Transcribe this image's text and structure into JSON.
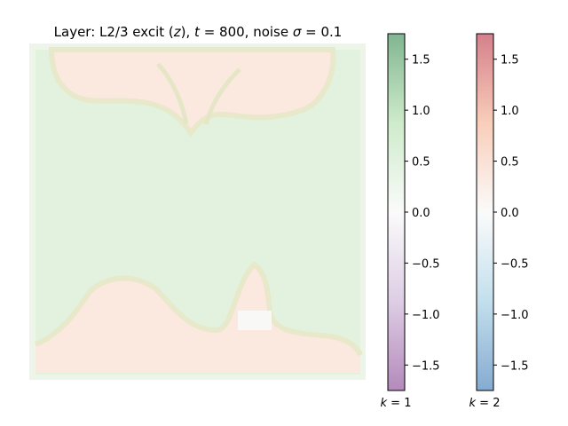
{
  "chart_data": {
    "type": "heatmap",
    "title": "Layer: L2/3 excit (z), t = 800, noise σ = 0.1",
    "title_parts": [
      {
        "text": "Layer: L2/3 excit (",
        "style": "normal"
      },
      {
        "text": "z",
        "style": "italic"
      },
      {
        "text": "), ",
        "style": "normal"
      },
      {
        "text": "t",
        "style": "italic"
      },
      {
        "text": " = 800, noise ",
        "style": "normal"
      },
      {
        "text": "σ",
        "style": "italic"
      },
      {
        "text": " = 0.1",
        "style": "normal"
      }
    ],
    "heatmap_regions": [
      {
        "name": "top-pink-region",
        "state": "k=2",
        "level": 0.35
      },
      {
        "name": "middle-green-band",
        "state": "k=1",
        "level": 0.3
      },
      {
        "name": "bottom-pink-region",
        "state": "k=2",
        "level": 0.35
      },
      {
        "name": "central-white-patch",
        "state": "none",
        "level": 0.0
      }
    ],
    "colorbars": [
      {
        "name": "colorbar-k1",
        "label_var": "k",
        "label_value": "= 1",
        "range": [
          -1.75,
          1.75
        ],
        "colors": [
          "#762a83",
          "#c2a5cf",
          "#f7f7f7",
          "#a6dba0",
          "#1b7837"
        ],
        "ticks": [
          {
            "value": 1.5,
            "label": "1.5"
          },
          {
            "value": 1.0,
            "label": "1.0"
          },
          {
            "value": 0.5,
            "label": "0.5"
          },
          {
            "value": 0.0,
            "label": "0.0"
          },
          {
            "value": -0.5,
            "label": "−0.5"
          },
          {
            "value": -1.0,
            "label": "−1.0"
          },
          {
            "value": -1.5,
            "label": "−1.5"
          }
        ]
      },
      {
        "name": "colorbar-k2",
        "label_var": "k",
        "label_value": "= 2",
        "range": [
          -1.75,
          1.75
        ],
        "colors": [
          "#2166ac",
          "#92c5de",
          "#f7f7f7",
          "#f4a582",
          "#b2182b"
        ],
        "ticks": [
          {
            "value": 1.5,
            "label": "1.5"
          },
          {
            "value": 1.0,
            "label": "1.0"
          },
          {
            "value": 0.5,
            "label": "0.5"
          },
          {
            "value": 0.0,
            "label": "0.0"
          },
          {
            "value": -0.5,
            "label": "−0.5"
          },
          {
            "value": -1.0,
            "label": "−1.0"
          },
          {
            "value": -1.5,
            "label": "−1.5"
          }
        ]
      }
    ],
    "grid": false
  }
}
